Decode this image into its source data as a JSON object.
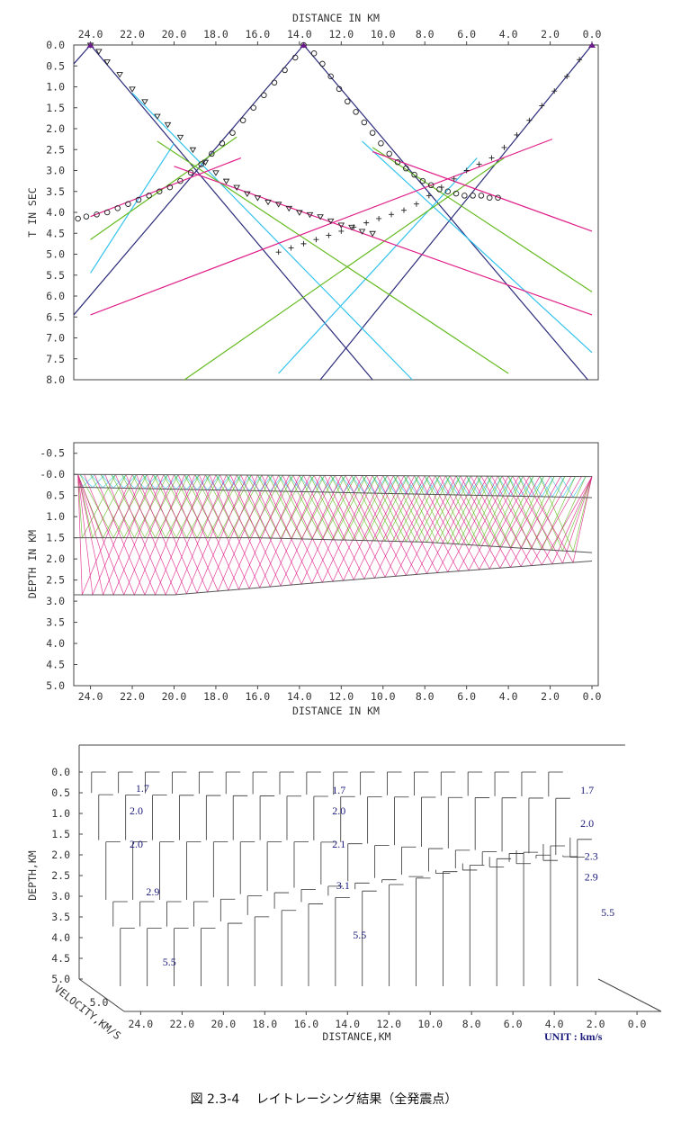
{
  "caption": "図 2.3-4　 レイトレーシング結果（全発震点）",
  "colors": {
    "layer1": "#2b2b7a",
    "layer2": "#33c3ee",
    "layer3": "#66bb22",
    "layer4": "#e0208a",
    "axis": "#444444",
    "label": "#1a1a7a"
  },
  "chart_data": [
    {
      "type": "line",
      "title": "",
      "xlabel": "DISTANCE IN KM",
      "ylabel": "T IN SEC",
      "x_ticks": [
        "24.0",
        "22.0",
        "20.0",
        "18.0",
        "16.0",
        "14.0",
        "12.0",
        "10.0",
        "8.0",
        "6.0",
        "4.0",
        "2.0",
        "0.0"
      ],
      "y_ticks": [
        "0.0",
        "0.5",
        "1.0",
        "1.5",
        "2.0",
        "2.5",
        "3.0",
        "3.5",
        "4.0",
        "4.5",
        "5.0",
        "5.5",
        "6.0",
        "6.5",
        "7.0",
        "7.5",
        "8.0"
      ],
      "xlim": [
        24.8,
        -0.3
      ],
      "ylim": [
        0,
        8
      ],
      "shots": [
        24.0,
        13.8,
        0.0
      ],
      "series": [
        {
          "color": "#2b2b7a",
          "segments": [
            [
              [
                24.0,
                0.0
              ],
              [
                10.5,
                8.0
              ]
            ],
            [
              [
                24.0,
                0.0
              ],
              [
                24.8,
                0.45
              ]
            ],
            [
              [
                13.8,
                0.0
              ],
              [
                24.8,
                6.45
              ]
            ],
            [
              [
                13.8,
                0.0
              ],
              [
                0.2,
                8.0
              ]
            ],
            [
              [
                0.0,
                0.0
              ],
              [
                13.0,
                8.0
              ]
            ]
          ]
        },
        {
          "color": "#33c3ee",
          "segments": [
            [
              [
                22.0,
                1.15
              ],
              [
                8.6,
                8.0
              ]
            ],
            [
              [
                20.0,
                2.35
              ],
              [
                24.0,
                5.45
              ]
            ],
            [
              [
                11.0,
                2.3
              ],
              [
                0.0,
                7.35
              ]
            ],
            [
              [
                5.5,
                2.7
              ],
              [
                15.0,
                7.85
              ]
            ]
          ]
        },
        {
          "color": "#66bb22",
          "segments": [
            [
              [
                20.8,
                2.3
              ],
              [
                4.0,
                7.85
              ]
            ],
            [
              [
                17.0,
                2.2
              ],
              [
                24.0,
                4.65
              ]
            ],
            [
              [
                10.5,
                2.45
              ],
              [
                0.0,
                5.9
              ]
            ],
            [
              [
                4.2,
                2.7
              ],
              [
                19.5,
                8.0
              ]
            ]
          ]
        },
        {
          "color": "#e0208a",
          "segments": [
            [
              [
                20.0,
                2.9
              ],
              [
                0.0,
                6.45
              ]
            ],
            [
              [
                16.8,
                2.7
              ],
              [
                24.0,
                4.1
              ]
            ],
            [
              [
                10.5,
                2.55
              ],
              [
                0.0,
                4.45
              ]
            ],
            [
              [
                1.9,
                2.25
              ],
              [
                24.0,
                6.45
              ]
            ]
          ]
        }
      ],
      "observed": [
        {
          "marker": "triangle",
          "label": "∇",
          "points": [
            [
              24.0,
              0.0
            ],
            [
              23.6,
              0.15
            ],
            [
              23.2,
              0.4
            ],
            [
              22.6,
              0.7
            ],
            [
              22.0,
              1.05
            ],
            [
              21.4,
              1.35
            ],
            [
              20.8,
              1.7
            ],
            [
              20.3,
              1.9
            ],
            [
              19.7,
              2.2
            ],
            [
              19.1,
              2.5
            ],
            [
              18.5,
              2.8
            ],
            [
              18.0,
              3.05
            ],
            [
              17.5,
              3.25
            ],
            [
              17.0,
              3.4
            ],
            [
              16.5,
              3.55
            ],
            [
              16.0,
              3.65
            ],
            [
              15.5,
              3.75
            ],
            [
              15.0,
              3.8
            ],
            [
              14.5,
              3.9
            ],
            [
              14.0,
              4.0
            ],
            [
              13.5,
              4.05
            ],
            [
              13.0,
              4.1
            ],
            [
              12.5,
              4.2
            ],
            [
              12.0,
              4.3
            ],
            [
              11.5,
              4.35
            ],
            [
              11.0,
              4.45
            ],
            [
              10.5,
              4.5
            ]
          ]
        },
        {
          "marker": "circle",
          "label": "⊙",
          "points": [
            [
              13.8,
              0.0
            ],
            [
              13.3,
              0.2
            ],
            [
              12.9,
              0.45
            ],
            [
              12.5,
              0.75
            ],
            [
              12.1,
              1.05
            ],
            [
              11.7,
              1.35
            ],
            [
              11.3,
              1.6
            ],
            [
              10.9,
              1.85
            ],
            [
              10.5,
              2.1
            ],
            [
              10.1,
              2.35
            ],
            [
              9.7,
              2.6
            ],
            [
              9.3,
              2.8
            ],
            [
              8.9,
              2.95
            ],
            [
              8.5,
              3.1
            ],
            [
              8.1,
              3.25
            ],
            [
              7.7,
              3.35
            ],
            [
              7.3,
              3.45
            ],
            [
              6.9,
              3.5
            ],
            [
              6.5,
              3.55
            ],
            [
              6.1,
              3.6
            ],
            [
              5.7,
              3.6
            ],
            [
              5.3,
              3.6
            ],
            [
              4.9,
              3.65
            ],
            [
              4.5,
              3.65
            ],
            [
              14.2,
              0.3
            ],
            [
              14.7,
              0.6
            ],
            [
              15.2,
              0.9
            ],
            [
              15.7,
              1.2
            ],
            [
              16.2,
              1.5
            ],
            [
              16.7,
              1.8
            ],
            [
              17.2,
              2.1
            ],
            [
              17.7,
              2.35
            ],
            [
              18.2,
              2.6
            ],
            [
              18.7,
              2.85
            ],
            [
              19.2,
              3.05
            ],
            [
              19.7,
              3.25
            ],
            [
              20.2,
              3.4
            ],
            [
              20.7,
              3.5
            ],
            [
              21.2,
              3.6
            ],
            [
              21.7,
              3.7
            ],
            [
              22.2,
              3.8
            ],
            [
              22.7,
              3.9
            ],
            [
              23.2,
              4.0
            ],
            [
              23.7,
              4.05
            ],
            [
              24.2,
              4.1
            ],
            [
              24.6,
              4.15
            ]
          ]
        },
        {
          "marker": "plus",
          "label": "+",
          "points": [
            [
              0.0,
              0.0
            ],
            [
              0.6,
              0.35
            ],
            [
              1.2,
              0.75
            ],
            [
              1.8,
              1.1
            ],
            [
              2.4,
              1.45
            ],
            [
              3.0,
              1.8
            ],
            [
              3.6,
              2.15
            ],
            [
              4.2,
              2.45
            ],
            [
              4.8,
              2.7
            ],
            [
              5.4,
              2.85
            ],
            [
              6.0,
              3.0
            ],
            [
              6.6,
              3.2
            ],
            [
              7.2,
              3.4
            ],
            [
              7.8,
              3.6
            ],
            [
              8.4,
              3.8
            ],
            [
              9.0,
              3.95
            ],
            [
              9.6,
              4.05
            ],
            [
              10.2,
              4.15
            ],
            [
              10.8,
              4.25
            ],
            [
              11.4,
              4.35
            ],
            [
              12.0,
              4.45
            ],
            [
              12.6,
              4.55
            ],
            [
              13.2,
              4.65
            ],
            [
              13.8,
              4.75
            ],
            [
              14.4,
              4.85
            ],
            [
              15.0,
              4.95
            ]
          ]
        }
      ]
    },
    {
      "type": "line",
      "title": "",
      "xlabel": "DISTANCE IN KM",
      "ylabel": "DEPTH IN KM",
      "x_ticks": [
        "24.0",
        "22.0",
        "20.0",
        "18.0",
        "16.0",
        "14.0",
        "12.0",
        "10.0",
        "8.0",
        "6.0",
        "4.0",
        "2.0",
        "0.0"
      ],
      "y_ticks": [
        "-0.5",
        "-0.0",
        "0.5",
        "1.0",
        "1.5",
        "2.0",
        "2.5",
        "3.0",
        "3.5",
        "4.0",
        "4.5",
        "5.0"
      ],
      "xlim": [
        24.8,
        -0.3
      ],
      "ylim": [
        -0.75,
        5.0
      ],
      "interfaces": [
        {
          "name": "top",
          "points": [
            [
              24.8,
              0.0
            ],
            [
              0.0,
              0.05
            ]
          ]
        },
        {
          "name": "i1",
          "points": [
            [
              24.8,
              0.3
            ],
            [
              0.0,
              0.55
            ]
          ]
        },
        {
          "name": "i2",
          "points": [
            [
              24.8,
              1.5
            ],
            [
              16.0,
              1.5
            ],
            [
              8.0,
              1.6
            ],
            [
              0.0,
              1.85
            ]
          ]
        },
        {
          "name": "i3",
          "points": [
            [
              24.8,
              2.85
            ],
            [
              20.0,
              2.85
            ],
            [
              14.0,
              2.6
            ],
            [
              8.0,
              2.35
            ],
            [
              0.0,
              2.05
            ]
          ]
        }
      ],
      "ray_colors": [
        "#33c3ee",
        "#66bb22",
        "#e0208a"
      ]
    },
    {
      "type": "table",
      "title": "",
      "xlabel": "DISTANCE,KM",
      "ylabel": "DEPTH,KM",
      "zlabel": "VELOCITY,KM/S",
      "unit_label": "UNIT : km/s",
      "x_ticks": [
        "24.0",
        "22.0",
        "20.0",
        "18.0",
        "16.0",
        "14.0",
        "12.0",
        "10.0",
        "8.0",
        "6.0",
        "4.0",
        "2.0",
        "0.0"
      ],
      "y_ticks": [
        "0.0",
        "0.5",
        "1.0",
        "1.5",
        "2.0",
        "2.5",
        "3.0",
        "3.5",
        "4.0",
        "4.5",
        "5.0"
      ],
      "z_ticks": [
        "5.0"
      ],
      "velocity_labels": [
        {
          "text": "1.7",
          "x": 22.5,
          "depth": 0.3
        },
        {
          "text": "1.7",
          "x": 13.0,
          "depth": 0.35
        },
        {
          "text": "1.7",
          "x": 1.0,
          "depth": 0.35
        },
        {
          "text": "2.0",
          "x": 22.8,
          "depth": 0.85
        },
        {
          "text": "2.0",
          "x": 13.0,
          "depth": 0.85
        },
        {
          "text": "2.0",
          "x": 1.0,
          "depth": 1.15
        },
        {
          "text": "2.0",
          "x": 22.8,
          "depth": 1.65
        },
        {
          "text": "2.1",
          "x": 13.0,
          "depth": 1.65
        },
        {
          "text": "2.3",
          "x": 0.8,
          "depth": 1.95
        },
        {
          "text": "2.9",
          "x": 0.8,
          "depth": 2.45
        },
        {
          "text": "2.9",
          "x": 22.0,
          "depth": 2.8
        },
        {
          "text": "3.1",
          "x": 12.8,
          "depth": 2.65
        },
        {
          "text": "5.5",
          "x": 0.0,
          "depth": 3.3
        },
        {
          "text": "5.5",
          "x": 12.0,
          "depth": 3.85
        },
        {
          "text": "5.5",
          "x": 21.2,
          "depth": 4.5
        }
      ]
    }
  ]
}
